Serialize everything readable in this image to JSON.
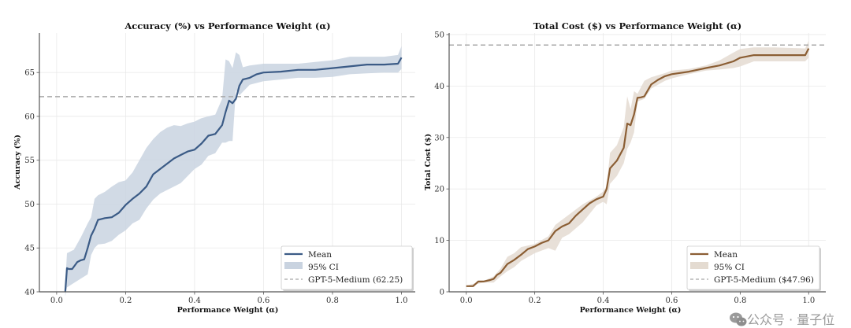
{
  "chart_data": [
    {
      "type": "line",
      "title": "Accuracy (%) vs Performance Weight (α)",
      "xlabel": "Performance Weight (α)",
      "ylabel": "Accuracy (%)",
      "xlim": [
        -0.05,
        1.04
      ],
      "ylim": [
        40,
        69.5
      ],
      "xticks": [
        "0.0",
        "0.2",
        "0.4",
        "0.6",
        "0.8",
        "1.0"
      ],
      "xtick_values": [
        0.0,
        0.2,
        0.4,
        0.6,
        0.8,
        1.0
      ],
      "yticks": [
        "40",
        "45",
        "50",
        "55",
        "60",
        "65"
      ],
      "ytick_values": [
        40,
        45,
        50,
        55,
        60,
        65
      ],
      "grid": true,
      "legend_position": "bottom-right",
      "colors": {
        "mean": "#3b5b86",
        "ci": "#c9d3e0",
        "reference": "#a8a8a8"
      },
      "reference_line": {
        "label": "GPT-5-Medium (62.25)",
        "value": 62.25
      },
      "legend": [
        "Mean",
        "95% CI",
        "GPT-5-Medium (62.25)"
      ],
      "series": [
        {
          "name": "Mean",
          "x": [
            0.025,
            0.03,
            0.035,
            0.045,
            0.06,
            0.07,
            0.08,
            0.09,
            0.1,
            0.11,
            0.12,
            0.14,
            0.16,
            0.18,
            0.2,
            0.22,
            0.24,
            0.26,
            0.28,
            0.3,
            0.32,
            0.34,
            0.36,
            0.38,
            0.4,
            0.42,
            0.44,
            0.46,
            0.48,
            0.49,
            0.5,
            0.51,
            0.52,
            0.53,
            0.54,
            0.56,
            0.58,
            0.6,
            0.65,
            0.7,
            0.75,
            0.8,
            0.85,
            0.9,
            0.95,
            0.99,
            1.0
          ],
          "y": [
            40.0,
            42.7,
            42.6,
            42.6,
            43.4,
            43.6,
            43.7,
            45.0,
            46.4,
            47.2,
            48.2,
            48.4,
            48.5,
            49.0,
            49.9,
            50.6,
            51.2,
            52.0,
            53.4,
            54.0,
            54.6,
            55.2,
            55.6,
            56.0,
            56.2,
            56.9,
            57.8,
            58.0,
            59.0,
            60.5,
            61.8,
            61.5,
            62.0,
            63.5,
            64.2,
            64.4,
            64.8,
            65.0,
            65.1,
            65.3,
            65.3,
            65.5,
            65.7,
            65.9,
            65.9,
            66.0,
            66.7
          ]
        },
        {
          "name": "95% CI upper",
          "x": [
            0.025,
            0.03,
            0.05,
            0.07,
            0.09,
            0.1,
            0.11,
            0.12,
            0.14,
            0.16,
            0.18,
            0.2,
            0.22,
            0.24,
            0.26,
            0.28,
            0.3,
            0.32,
            0.34,
            0.36,
            0.38,
            0.4,
            0.42,
            0.44,
            0.46,
            0.48,
            0.49,
            0.5,
            0.51,
            0.52,
            0.53,
            0.54,
            0.56,
            0.6,
            0.65,
            0.7,
            0.75,
            0.8,
            0.85,
            0.9,
            0.95,
            0.99,
            1.0
          ],
          "y": [
            41.0,
            44.4,
            44.8,
            46.2,
            47.8,
            48.5,
            50.6,
            51.0,
            51.4,
            52.0,
            52.5,
            52.7,
            53.6,
            55.0,
            56.4,
            57.4,
            58.2,
            58.7,
            59.0,
            58.9,
            59.2,
            59.4,
            59.8,
            60.0,
            60.2,
            62.0,
            66.5,
            66.3,
            65.5,
            67.3,
            67.0,
            65.6,
            65.8,
            66.0,
            66.0,
            66.0,
            66.2,
            66.4,
            66.8,
            66.8,
            66.8,
            67.0,
            68.0
          ]
        },
        {
          "name": "95% CI lower",
          "x": [
            0.025,
            0.03,
            0.05,
            0.07,
            0.09,
            0.1,
            0.11,
            0.12,
            0.14,
            0.16,
            0.18,
            0.2,
            0.22,
            0.24,
            0.26,
            0.28,
            0.3,
            0.32,
            0.34,
            0.36,
            0.38,
            0.4,
            0.42,
            0.44,
            0.46,
            0.48,
            0.49,
            0.5,
            0.51,
            0.52,
            0.53,
            0.54,
            0.56,
            0.6,
            0.65,
            0.7,
            0.75,
            0.8,
            0.85,
            0.9,
            0.95,
            0.99,
            1.0
          ],
          "y": [
            39.5,
            40.5,
            41.0,
            41.5,
            42.0,
            44.2,
            45.0,
            45.4,
            45.5,
            45.8,
            46.5,
            47.0,
            47.8,
            48.2,
            49.5,
            50.5,
            51.2,
            51.6,
            52.0,
            52.4,
            53.2,
            54.0,
            54.5,
            55.5,
            55.8,
            57.0,
            57.0,
            57.2,
            57.2,
            63.0,
            62.4,
            62.8,
            63.6,
            64.0,
            64.2,
            64.4,
            64.4,
            64.5,
            64.8,
            64.9,
            65.0,
            65.0,
            65.4
          ]
        }
      ]
    },
    {
      "type": "line",
      "title": "Total Cost ($) vs Performance Weight (α)",
      "xlabel": "Performance Weight (α)",
      "ylabel": "Total Cost ($)",
      "xlim": [
        -0.05,
        1.05
      ],
      "ylim": [
        0,
        50.3
      ],
      "xticks": [
        "0.0",
        "0.2",
        "0.4",
        "0.6",
        "0.8",
        "1.0"
      ],
      "xtick_values": [
        0.0,
        0.2,
        0.4,
        0.6,
        0.8,
        1.0
      ],
      "yticks": [
        "0",
        "10",
        "20",
        "30",
        "40",
        "50"
      ],
      "ytick_values": [
        0,
        10,
        20,
        30,
        40,
        50
      ],
      "grid": true,
      "legend_position": "bottom-right",
      "colors": {
        "mean": "#8b5e34",
        "ci": "#e4dbd1",
        "reference": "#a8a8a8"
      },
      "reference_line": {
        "label": "GPT-5-Medium ($47.96)",
        "value": 47.96
      },
      "legend": [
        "Mean",
        "95% CI",
        "GPT-5-Medium ($47.96)"
      ],
      "series": [
        {
          "name": "Mean",
          "x": [
            0.0,
            0.02,
            0.035,
            0.05,
            0.07,
            0.08,
            0.09,
            0.1,
            0.12,
            0.14,
            0.16,
            0.18,
            0.2,
            0.22,
            0.24,
            0.26,
            0.28,
            0.3,
            0.32,
            0.34,
            0.36,
            0.38,
            0.4,
            0.41,
            0.42,
            0.44,
            0.46,
            0.47,
            0.48,
            0.49,
            0.5,
            0.51,
            0.52,
            0.54,
            0.56,
            0.58,
            0.6,
            0.65,
            0.7,
            0.74,
            0.78,
            0.8,
            0.84,
            0.9,
            0.95,
            0.99,
            1.0
          ],
          "y": [
            1.1,
            1.1,
            2.0,
            2.0,
            2.3,
            2.5,
            3.3,
            3.7,
            5.4,
            6.2,
            7.2,
            8.3,
            8.8,
            9.5,
            10.0,
            11.8,
            12.7,
            13.3,
            14.8,
            16.0,
            17.2,
            18.0,
            18.5,
            20.0,
            24.0,
            25.5,
            28.0,
            32.7,
            32.4,
            34.5,
            37.7,
            37.8,
            38.0,
            40.3,
            41.2,
            41.9,
            42.3,
            42.8,
            43.5,
            44.0,
            44.8,
            45.5,
            46.0,
            46.0,
            46.0,
            46.0,
            47.3
          ]
        },
        {
          "name": "95% CI upper",
          "x": [
            0.0,
            0.05,
            0.08,
            0.1,
            0.12,
            0.14,
            0.16,
            0.2,
            0.24,
            0.26,
            0.28,
            0.3,
            0.34,
            0.38,
            0.4,
            0.41,
            0.42,
            0.44,
            0.46,
            0.47,
            0.48,
            0.49,
            0.5,
            0.52,
            0.54,
            0.58,
            0.6,
            0.65,
            0.7,
            0.74,
            0.78,
            0.8,
            0.84,
            0.9,
            0.95,
            0.99,
            1.0
          ],
          "y": [
            1.2,
            2.1,
            3.0,
            4.5,
            6.8,
            7.5,
            8.7,
            9.3,
            10.8,
            13.0,
            14.0,
            15.0,
            17.0,
            18.5,
            19.5,
            20.6,
            27.0,
            28.5,
            32.0,
            38.0,
            35.5,
            39.0,
            38.5,
            41.0,
            41.7,
            42.5,
            43.0,
            43.3,
            44.0,
            45.0,
            46.5,
            47.2,
            47.5,
            47.5,
            47.4,
            47.3,
            48.8
          ]
        },
        {
          "name": "95% CI lower",
          "x": [
            0.0,
            0.05,
            0.08,
            0.1,
            0.12,
            0.14,
            0.16,
            0.2,
            0.24,
            0.26,
            0.28,
            0.3,
            0.34,
            0.38,
            0.4,
            0.41,
            0.42,
            0.44,
            0.46,
            0.47,
            0.48,
            0.49,
            0.5,
            0.52,
            0.54,
            0.58,
            0.6,
            0.65,
            0.7,
            0.74,
            0.78,
            0.8,
            0.84,
            0.9,
            0.95,
            0.99,
            1.0
          ],
          "y": [
            1.0,
            1.8,
            1.8,
            3.0,
            4.0,
            4.8,
            6.0,
            7.5,
            8.5,
            8.0,
            10.5,
            11.2,
            13.5,
            16.8,
            17.5,
            17.0,
            21.0,
            22.5,
            25.0,
            27.8,
            29.0,
            31.0,
            37.0,
            37.5,
            39.5,
            41.0,
            41.5,
            42.3,
            43.0,
            43.2,
            43.5,
            43.8,
            44.8,
            44.8,
            44.8,
            44.8,
            45.5
          ]
        }
      ]
    }
  ],
  "watermark": {
    "label": "公众号 · 量子位",
    "icon": "wechat-icon"
  }
}
